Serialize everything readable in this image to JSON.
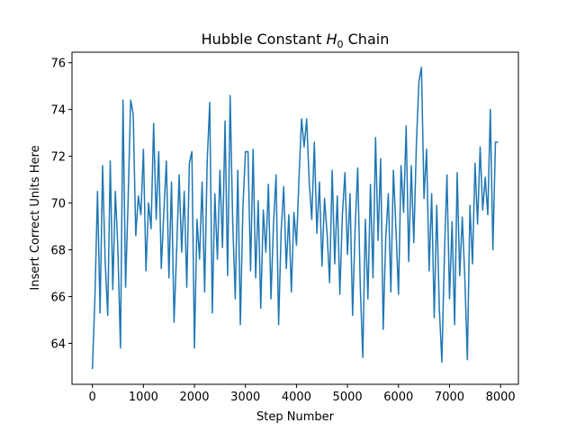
{
  "chart_data": {
    "type": "line",
    "title_parts": [
      "Hubble Constant ",
      "H",
      "0",
      " Chain"
    ],
    "xlabel": "Step Number",
    "ylabel": "Insert Correct Units Here",
    "xlim": [
      -400,
      8350
    ],
    "ylim": [
      62.25,
      76.45
    ],
    "xticks": [
      0,
      1000,
      2000,
      3000,
      4000,
      5000,
      6000,
      7000,
      8000
    ],
    "yticks": [
      64,
      66,
      68,
      70,
      72,
      74,
      76
    ],
    "x": [
      0,
      50,
      100,
      150,
      200,
      250,
      300,
      350,
      400,
      450,
      500,
      550,
      600,
      650,
      700,
      750,
      800,
      850,
      900,
      950,
      1000,
      1050,
      1100,
      1150,
      1200,
      1250,
      1300,
      1350,
      1400,
      1450,
      1500,
      1550,
      1600,
      1650,
      1700,
      1750,
      1800,
      1850,
      1900,
      1950,
      2000,
      2050,
      2100,
      2150,
      2200,
      2250,
      2300,
      2350,
      2400,
      2450,
      2500,
      2550,
      2600,
      2650,
      2700,
      2750,
      2800,
      2850,
      2900,
      2950,
      3000,
      3050,
      3100,
      3150,
      3200,
      3250,
      3300,
      3350,
      3400,
      3450,
      3500,
      3550,
      3600,
      3650,
      3700,
      3750,
      3800,
      3850,
      3900,
      3950,
      4000,
      4050,
      4100,
      4150,
      4200,
      4250,
      4300,
      4350,
      4400,
      4450,
      4500,
      4550,
      4600,
      4650,
      4700,
      4750,
      4800,
      4850,
      4900,
      4950,
      5000,
      5050,
      5100,
      5150,
      5200,
      5250,
      5300,
      5350,
      5400,
      5450,
      5500,
      5550,
      5600,
      5650,
      5700,
      5750,
      5800,
      5850,
      5900,
      5950,
      6000,
      6050,
      6100,
      6150,
      6200,
      6250,
      6300,
      6350,
      6400,
      6450,
      6500,
      6550,
      6600,
      6650,
      6700,
      6750,
      6800,
      6850,
      6900,
      6950,
      7000,
      7050,
      7100,
      7150,
      7200,
      7250,
      7300,
      7350,
      7400,
      7450,
      7500,
      7550,
      7600,
      7650,
      7700,
      7750,
      7800,
      7850,
      7900,
      7950
    ],
    "series": [
      {
        "color": "#1f77b4",
        "values": [
          62.9,
          66,
          70.5,
          65.3,
          71.6,
          67.5,
          65.2,
          71.8,
          66.3,
          70.5,
          68,
          63.8,
          74.4,
          66.4,
          70.1,
          74.4,
          73.8,
          68.6,
          70.3,
          69.5,
          72.3,
          67.1,
          70,
          68.9,
          73.4,
          69.3,
          72.2,
          67.2,
          69.6,
          71.8,
          66.8,
          70.9,
          64.9,
          67.9,
          71.2,
          67.9,
          70.5,
          66.4,
          71.7,
          72.2,
          63.8,
          69.3,
          67.6,
          70.9,
          66.2,
          71.8,
          74.3,
          65.3,
          70.4,
          67.6,
          71.4,
          68.1,
          73.5,
          66.9,
          74.6,
          69.2,
          65.9,
          71.4,
          64.8,
          69.8,
          72.2,
          72.2,
          67.1,
          72.3,
          66.8,
          70.1,
          65.5,
          69.7,
          67.9,
          70.8,
          65.9,
          69.1,
          71.2,
          64.8,
          68.8,
          70.7,
          67.2,
          69.5,
          66.2,
          69.6,
          68.2,
          71.1,
          73.6,
          72.4,
          73.6,
          70.9,
          69.3,
          72.6,
          68.7,
          70.9,
          67.3,
          70.2,
          68.7,
          66.6,
          71.4,
          67.4,
          70.3,
          66.1,
          69.5,
          71.3,
          67.8,
          70.4,
          65.2,
          68.9,
          71.5,
          66.5,
          63.4,
          69.3,
          65.9,
          70.8,
          66.8,
          72.8,
          68.4,
          71.9,
          64.6,
          68.5,
          70.4,
          66.2,
          71.4,
          68.9,
          66.1,
          71.6,
          69.6,
          73.3,
          67.5,
          71.6,
          68.3,
          72.5,
          75.2,
          75.8,
          70.2,
          72.3,
          67.1,
          70.4,
          65.1,
          69.9,
          65.5,
          63.2,
          67.8,
          71.2,
          65.9,
          69.2,
          64.8,
          71.3,
          66.9,
          69.4,
          66.8,
          63.3,
          69.9,
          67.4,
          71.7,
          69.1,
          72.4,
          69.7,
          71.1,
          69.5,
          74,
          68,
          72.6,
          72.6
        ]
      }
    ]
  }
}
